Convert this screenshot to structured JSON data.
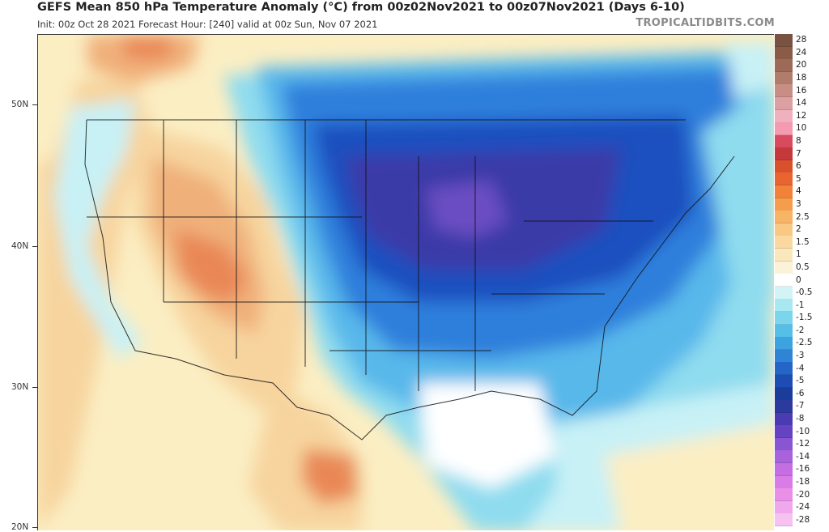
{
  "header": {
    "title": "GEFS Mean 850 hPa Temperature Anomaly (°C) from 00z02Nov2021 to 00z07Nov2021 (Days 6-10)",
    "subtitle": "Init: 00z Oct 28 2021   Forecast Hour: [240]   valid at 00z Sun, Nov 07 2021",
    "brand": "TROPICALTIDBITS.COM"
  },
  "map": {
    "lat_labels": [
      "50N",
      "40N",
      "30N",
      "20N"
    ],
    "colors": {
      "ocean_neutral": "#fdfdfd",
      "warm_light": "#fbeec3",
      "warm_mid": "#f7d49e",
      "warm_strong": "#f0b07a",
      "warm_core": "#e98856",
      "cool_pale": "#c8f1f6",
      "cool_light": "#8fdcef",
      "cool_mid": "#58b8ea",
      "cool_strong": "#2f7fdc",
      "cool_deep": "#1e4fbf",
      "cold_core": "#3a3aa8",
      "cold_purple": "#6b4ec2"
    }
  },
  "colorbar": {
    "labels": [
      "28",
      "24",
      "20",
      "18",
      "16",
      "14",
      "12",
      "10",
      "8",
      "7",
      "6",
      "5",
      "4",
      "3",
      "2.5",
      "2",
      "1.5",
      "1",
      "0.5",
      "0",
      "-0.5",
      "-1",
      "-1.5",
      "-2",
      "-2.5",
      "-3",
      "-4",
      "-5",
      "-6",
      "-7",
      "-8",
      "-10",
      "-12",
      "-14",
      "-16",
      "-18",
      "-20",
      "-24",
      "-28"
    ],
    "colors": [
      "#7a5240",
      "#8a5c48",
      "#9c6a56",
      "#b07c6c",
      "#c88e86",
      "#dc9fa2",
      "#eeb1bd",
      "#f59ab0",
      "#d84a5e",
      "#c43a3c",
      "#d9502c",
      "#e86530",
      "#f2823a",
      "#f59d4c",
      "#f7b466",
      "#f8c884",
      "#fad9a0",
      "#fbe7bd",
      "#fcf2d8",
      "#ffffff",
      "#d2f4f7",
      "#a8e8f1",
      "#7ad6ec",
      "#56bfe8",
      "#3da3e0",
      "#2f84d6",
      "#2466c8",
      "#1c4cb4",
      "#1a3d9c",
      "#2b3a9c",
      "#4a3ab4",
      "#6544c4",
      "#8a55d2",
      "#a862dc",
      "#c56ee2",
      "#da7ce6",
      "#e890e8",
      "#f0a8ec",
      "#f6c2f2"
    ]
  }
}
